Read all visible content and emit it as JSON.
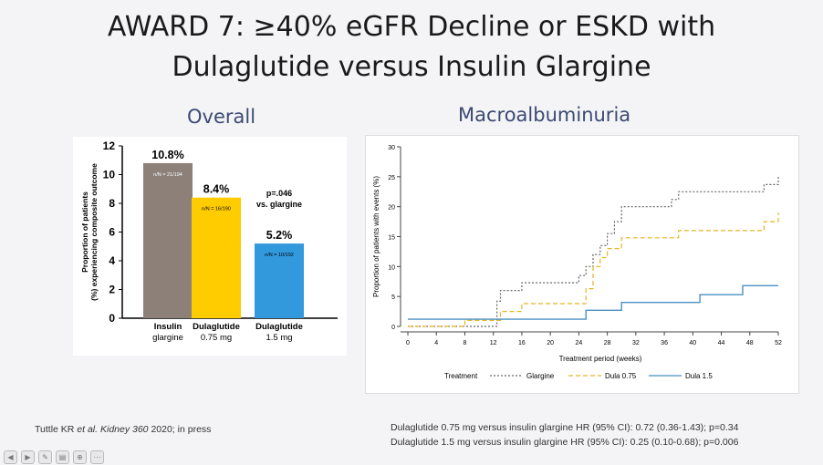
{
  "slide": {
    "title_line1": "AWARD 7: ≥40% eGFR Decline or ESKD with",
    "title_line2": "Dulaglutide versus Insulin Glargine",
    "subtitle_left": "Overall",
    "subtitle_right": "Macroalbuminuria",
    "citation": {
      "authors": "Tuttle KR ",
      "etal": "et al.",
      "journal": " Kidney 360",
      "rest": " 2020; in press"
    },
    "hr_line1": "Dulaglutide 0.75 mg versus insulin glargine HR (95% CI): 0.72 (0.36-1.43); p=0.34",
    "hr_line2": "Dulaglutide 1.5 mg versus insulin glargine HR (95% CI): 0.25 (0.10-0.68); p=0.006"
  },
  "toolbar_icons": [
    "back-icon",
    "forward-icon",
    "pen-icon",
    "pages-icon",
    "zoom-icon",
    "more-icon"
  ],
  "chart_data": [
    {
      "type": "bar",
      "ylabel": "Proportion of patients (%) experiencing composite outcome",
      "ylim": [
        0,
        12
      ],
      "yticks": [
        0,
        2,
        4,
        6,
        8,
        10,
        12
      ],
      "categories": [
        "Insulin glargine",
        "Dulaglutide 0.75 mg",
        "Dulaglutide 1.5 mg"
      ],
      "category_lines": [
        [
          "Insulin",
          "glargine"
        ],
        [
          "Dulaglutide",
          "0.75 mg"
        ],
        [
          "Dulaglutide",
          "1.5 mg"
        ]
      ],
      "values": [
        10.8,
        8.4,
        5.2
      ],
      "value_labels": [
        "10.8%",
        "8.4%",
        "5.2%"
      ],
      "n_labels": [
        "n/N = 21/194",
        "n/N = 16/190",
        "n/N = 10/192"
      ],
      "colors": [
        "#8c8079",
        "#ffcc00",
        "#3399dd"
      ],
      "annotation": [
        "p=.046",
        "vs. glargine"
      ]
    },
    {
      "type": "line",
      "xlabel": "Treatment period (weeks)",
      "ylabel": "Proportion of patients with events (%)",
      "xlim": [
        0,
        52
      ],
      "ylim": [
        0,
        30
      ],
      "xticks": [
        0,
        4,
        8,
        12,
        16,
        20,
        24,
        28,
        32,
        36,
        40,
        44,
        48,
        52
      ],
      "yticks": [
        0,
        5,
        10,
        15,
        20,
        25,
        30
      ],
      "legend_title": "Treatment",
      "legend_position": "bottom",
      "series": [
        {
          "name": "Glargine",
          "color": "#666666",
          "style": "dotted",
          "x": [
            0,
            12,
            12.5,
            13,
            15,
            16,
            20,
            24,
            25,
            26,
            27,
            28,
            29,
            30,
            36,
            37,
            38,
            49,
            50,
            51,
            52
          ],
          "y": [
            0,
            0,
            4.2,
            6,
            6,
            7.3,
            7.3,
            8.5,
            10,
            12,
            13.5,
            15.5,
            17.5,
            20,
            20,
            21.2,
            22.5,
            22.5,
            23.7,
            23.7,
            25
          ]
        },
        {
          "name": "Dula 0.75",
          "color": "#e6b422",
          "style": "dashed",
          "x": [
            0,
            8,
            12,
            13,
            16,
            24,
            25,
            26,
            27,
            28,
            30,
            33,
            38,
            46,
            50,
            52
          ],
          "y": [
            0,
            1,
            1,
            2.5,
            3.8,
            3.8,
            6.3,
            10,
            11.5,
            13,
            14.8,
            14.8,
            16,
            16,
            17.5,
            19
          ]
        },
        {
          "name": "Dula 1.5",
          "color": "#4a90c0",
          "style": "solid",
          "x": [
            0,
            24,
            25,
            29,
            30,
            40,
            41,
            46,
            47,
            52
          ],
          "y": [
            1.2,
            1.2,
            2.7,
            2.7,
            4,
            4,
            5.3,
            5.3,
            6.8,
            6.8
          ]
        }
      ]
    }
  ]
}
